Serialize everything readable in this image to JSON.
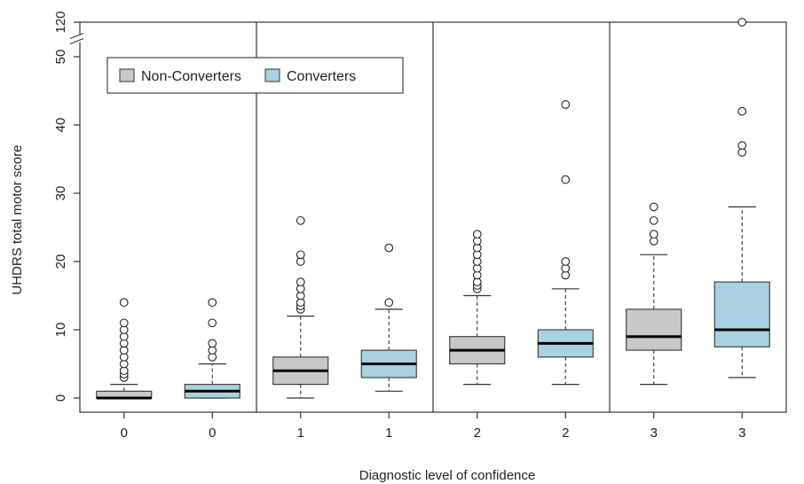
{
  "chart_data": {
    "type": "boxplot",
    "xlabel": "Diagnostic level of confidence",
    "ylabel": "UHDRS total motor score",
    "ylim": [
      0,
      50
    ],
    "y_ticks": [
      0,
      10,
      20,
      30,
      40,
      50
    ],
    "y_break": {
      "lower": 50,
      "upper": 120
    },
    "grid": false,
    "legend_position": "top-left",
    "colors": {
      "Non-Converters": "#c8c8c8",
      "Converters": "#a8d2e2"
    },
    "legend": [
      {
        "name": "Non-Converters",
        "color": "#c8c8c8"
      },
      {
        "name": "Converters",
        "color": "#a8d2e2"
      }
    ],
    "categories": [
      "0",
      "0",
      "1",
      "1",
      "2",
      "2",
      "3",
      "3"
    ],
    "boxes": [
      {
        "label": "0",
        "group": "Non-Converters",
        "min": 0,
        "q1": 0,
        "median": 0,
        "q3": 1,
        "max": 2,
        "outliers": [
          3,
          3.5,
          4,
          5,
          6,
          7,
          8,
          9,
          10,
          11,
          14
        ]
      },
      {
        "label": "0",
        "group": "Converters",
        "min": 0,
        "q1": 0,
        "median": 1,
        "q3": 2,
        "max": 5,
        "outliers": [
          6,
          7,
          8,
          11,
          14
        ]
      },
      {
        "label": "1",
        "group": "Non-Converters",
        "min": 0,
        "q1": 2,
        "median": 4,
        "q3": 6,
        "max": 12,
        "outliers": [
          13,
          13.5,
          14,
          15,
          16,
          17,
          20,
          21,
          26
        ]
      },
      {
        "label": "1",
        "group": "Converters",
        "min": 1,
        "q1": 3,
        "median": 5,
        "q3": 7,
        "max": 13,
        "outliers": [
          14,
          22
        ]
      },
      {
        "label": "2",
        "group": "Non-Converters",
        "min": 2,
        "q1": 5,
        "median": 7,
        "q3": 9,
        "max": 15,
        "outliers": [
          16,
          16.5,
          17,
          18,
          19,
          20,
          21,
          22,
          23,
          24
        ]
      },
      {
        "label": "2",
        "group": "Converters",
        "min": 2,
        "q1": 6,
        "median": 8,
        "q3": 10,
        "max": 16,
        "outliers": [
          18,
          19,
          20,
          32,
          43
        ]
      },
      {
        "label": "3",
        "group": "Non-Converters",
        "min": 2,
        "q1": 7,
        "median": 9,
        "q3": 13,
        "max": 21,
        "outliers": [
          23,
          24,
          26,
          28
        ]
      },
      {
        "label": "3",
        "group": "Converters",
        "min": 3,
        "q1": 7.5,
        "median": 10,
        "q3": 17,
        "max": 28,
        "outliers": [
          36,
          37,
          42,
          120
        ]
      }
    ]
  }
}
